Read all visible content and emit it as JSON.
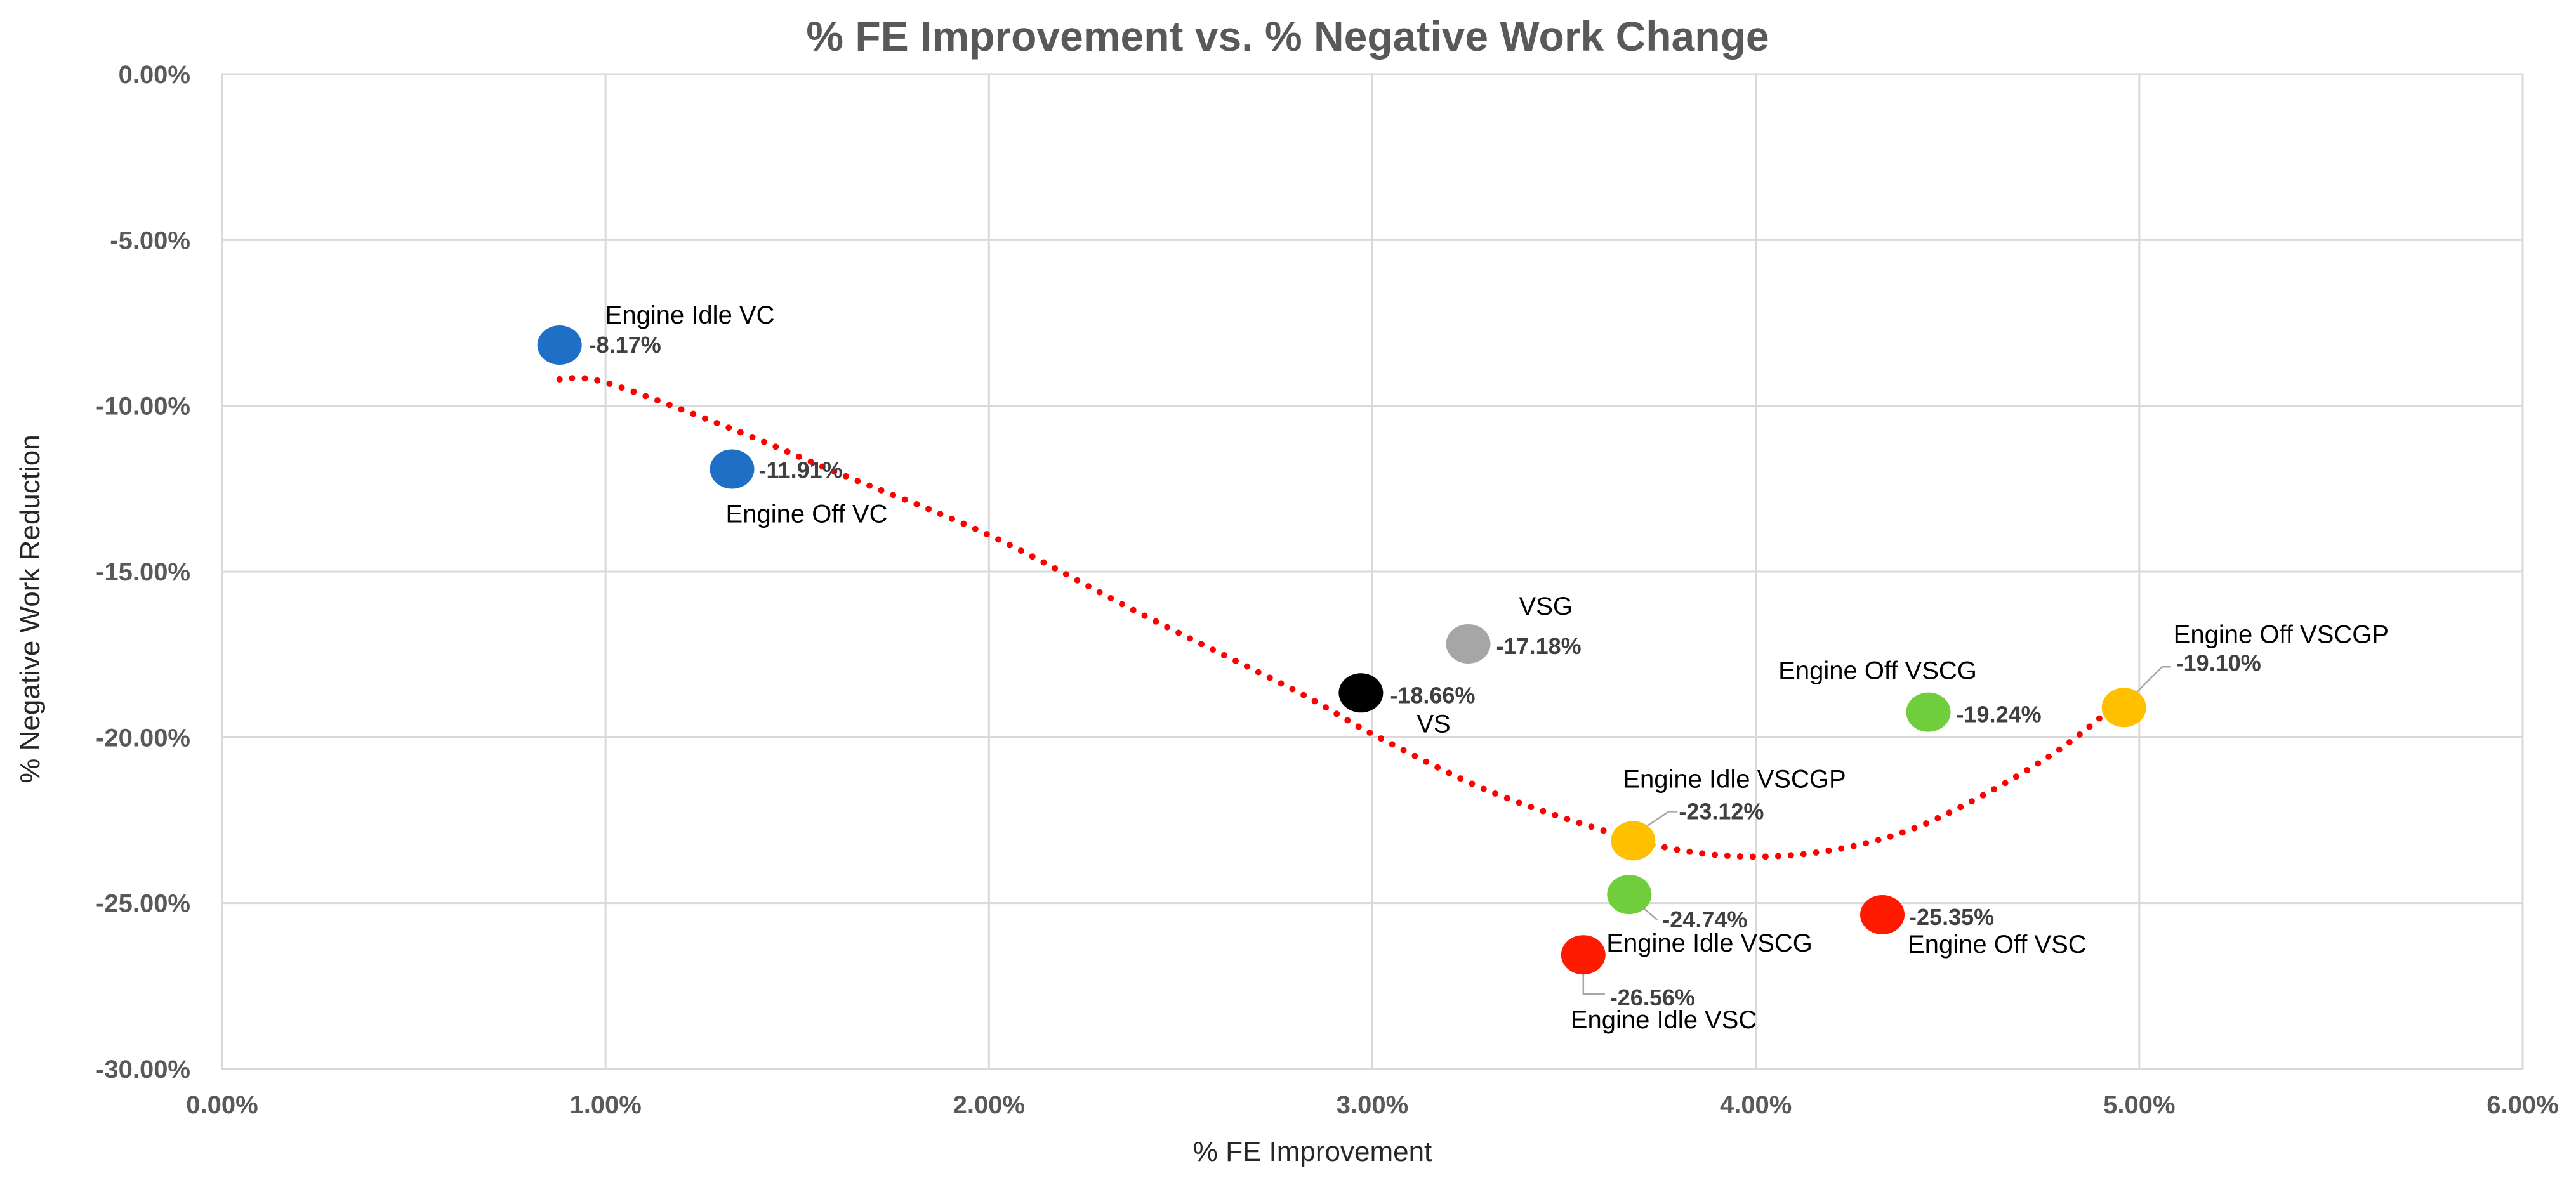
{
  "chart_data": {
    "type": "scatter",
    "title": "% FE Improvement vs. % Negative Work Change",
    "xlabel": "% FE Improvement",
    "ylabel": "% Negative Work Reduction",
    "xlim": [
      0,
      6
    ],
    "ylim": [
      -30,
      0
    ],
    "x_ticks": [
      0,
      1,
      2,
      3,
      4,
      5,
      6
    ],
    "y_ticks": [
      0,
      -5,
      -10,
      -15,
      -20,
      -25,
      -30
    ],
    "x_tick_labels": [
      "0.00%",
      "1.00%",
      "2.00%",
      "3.00%",
      "4.00%",
      "5.00%",
      "6.00%"
    ],
    "y_tick_labels": [
      "0.00%",
      "-5.00%",
      "-10.00%",
      "-15.00%",
      "-20.00%",
      "-25.00%",
      "-30.00%"
    ],
    "grid": true,
    "points": [
      {
        "name": "Engine Idle VC",
        "x": 0.88,
        "y": -8.17,
        "label": "-8.17%",
        "color": "#1f6fc6"
      },
      {
        "name": "Engine Off VC",
        "x": 1.33,
        "y": -11.91,
        "label": "-11.91%",
        "color": "#1f6fc6"
      },
      {
        "name": "VS",
        "x": 2.97,
        "y": -18.66,
        "label": "-18.66%",
        "color": "#000000"
      },
      {
        "name": "VSG",
        "x": 3.25,
        "y": -17.18,
        "label": "-17.18%",
        "color": "#a6a6a6"
      },
      {
        "name": "Engine Idle VSCGP",
        "x": 3.68,
        "y": -23.12,
        "label": "-23.12%",
        "color": "#ffc000"
      },
      {
        "name": "Engine Idle VSCG",
        "x": 3.67,
        "y": -24.74,
        "label": "-24.74%",
        "color": "#70ce3c"
      },
      {
        "name": "Engine Idle VSC",
        "x": 3.55,
        "y": -26.56,
        "label": "-26.56%",
        "color": "#ff1a00"
      },
      {
        "name": "Engine Off VSCG",
        "x": 4.45,
        "y": -19.24,
        "label": "-19.24%",
        "color": "#70ce3c"
      },
      {
        "name": "Engine Off VSC",
        "x": 4.33,
        "y": -25.35,
        "label": "-25.35%",
        "color": "#ff1a00"
      },
      {
        "name": "Engine Off VSCGP",
        "x": 4.96,
        "y": -19.1,
        "label": "-19.10%",
        "color": "#ffc000"
      }
    ],
    "trendline": {
      "type": "polynomial",
      "style": "dotted",
      "color": "#ff0000",
      "x": [
        0.88,
        1.0,
        1.33,
        1.6,
        2.0,
        2.4,
        2.8,
        3.0,
        3.3,
        3.6,
        3.8,
        4.0,
        4.2,
        4.4,
        4.6,
        4.8,
        4.96
      ],
      "y": [
        -9.2,
        -9.3,
        -10.7,
        -12.0,
        -13.9,
        -16.3,
        -18.6,
        -19.9,
        -21.6,
        -22.8,
        -23.4,
        -23.6,
        -23.4,
        -22.8,
        -21.7,
        -20.3,
        -18.8
      ]
    }
  }
}
